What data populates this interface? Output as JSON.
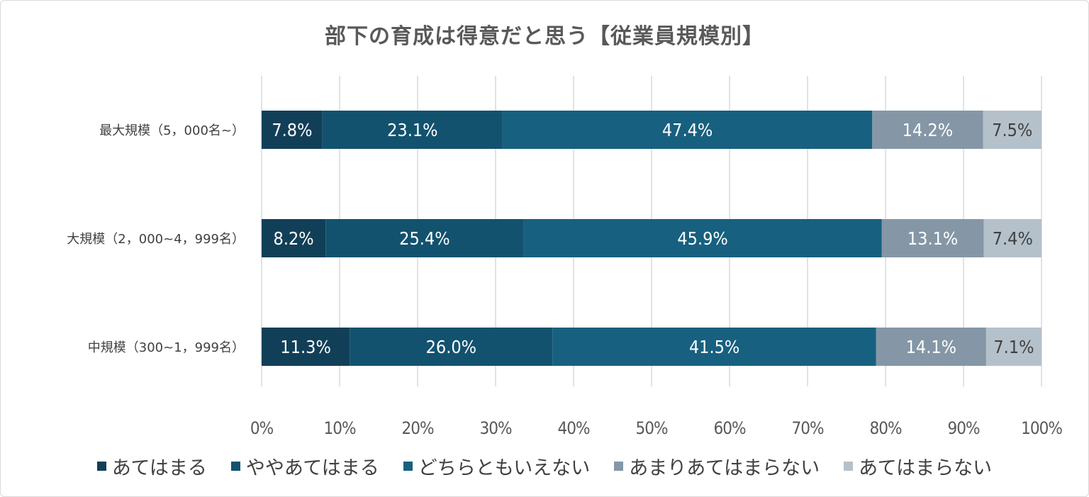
{
  "chart_data": {
    "type": "bar",
    "orientation": "horizontal",
    "stacked": "percent",
    "title": "部下の育成は得意だと思う【従業員規模別】",
    "categories": [
      "最大規模（5，000名~）",
      "大規模（2，000~4，999名）",
      "中規模（300~1，999名）"
    ],
    "series": [
      {
        "name": "あてはまる",
        "color": "#123f58",
        "values": [
          7.8,
          8.2,
          11.3
        ],
        "labels": [
          "7.8%",
          "8.2%",
          "11.3%"
        ]
      },
      {
        "name": "ややあてはまる",
        "color": "#12526e",
        "values": [
          23.1,
          25.4,
          26.0
        ],
        "labels": [
          "23.1%",
          "25.4%",
          "26.0%"
        ]
      },
      {
        "name": "どちらともいえない",
        "color": "#17607f",
        "values": [
          47.4,
          45.9,
          41.5
        ],
        "labels": [
          "47.4%",
          "45.9%",
          "41.5%"
        ]
      },
      {
        "name": "あまりあてはまらない",
        "color": "#8597a6",
        "values": [
          14.2,
          13.1,
          14.1
        ],
        "labels": [
          "14.2%",
          "13.1%",
          "14.1%"
        ]
      },
      {
        "name": "あてはまらない",
        "color": "#b5c1ca",
        "values": [
          7.5,
          7.4,
          7.1
        ],
        "labels": [
          "7.5%",
          "7.4%",
          "7.1%"
        ]
      }
    ],
    "xlim": [
      0,
      100
    ],
    "xticks": [
      "0%",
      "10%",
      "20%",
      "30%",
      "40%",
      "50%",
      "60%",
      "70%",
      "80%",
      "90%",
      "100%"
    ],
    "grid": true,
    "legend": "bottom"
  }
}
